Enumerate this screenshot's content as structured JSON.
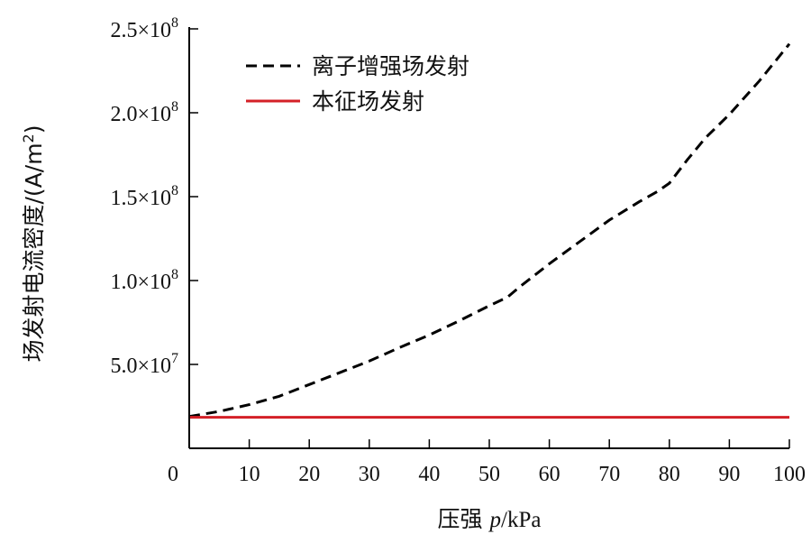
{
  "chart_data": {
    "type": "line",
    "xlabel_prefix": "压强 ",
    "xlabel_var": "p",
    "xlabel_unit": "/kPa",
    "ylabel_main": "场发射电流密度/(A/m",
    "ylabel_sup": "2",
    "ylabel_tail": ")",
    "xlim": [
      0,
      100
    ],
    "ylim": [
      0,
      250000000
    ],
    "x_ticks": [
      0,
      10,
      20,
      30,
      40,
      50,
      60,
      70,
      80,
      90,
      100
    ],
    "x_tick_labels": [
      "0",
      "10",
      "20",
      "30",
      "40",
      "50",
      "60",
      "70",
      "80",
      "90",
      "100"
    ],
    "y_ticks": [
      {
        "value": 50000000,
        "mantissa": "5.0×10",
        "exp": "7"
      },
      {
        "value": 100000000,
        "mantissa": "1.0×10",
        "exp": "8"
      },
      {
        "value": 150000000,
        "mantissa": "1.5×10",
        "exp": "8"
      },
      {
        "value": 200000000,
        "mantissa": "2.0×10",
        "exp": "8"
      },
      {
        "value": 250000000,
        "mantissa": "2.5×10",
        "exp": "8"
      }
    ],
    "legend_position": "top-left",
    "series": [
      {
        "name": "离子增强场发射",
        "style": "dashed",
        "color": "#000000",
        "x": [
          0,
          5,
          10,
          15,
          20,
          25,
          30,
          35,
          40,
          45,
          50,
          53,
          55,
          60,
          65,
          70,
          75,
          78,
          80,
          83,
          86,
          90,
          95,
          100
        ],
        "y": [
          19000000,
          22000000,
          26000000,
          31000000,
          38000000,
          45000000,
          52000000,
          60000000,
          67500000,
          76000000,
          85000000,
          90000000,
          96000000,
          110000000,
          123000000,
          136000000,
          147000000,
          153000000,
          158000000,
          172000000,
          185000000,
          199000000,
          219000000,
          241000000
        ]
      },
      {
        "name": "本征场发射",
        "style": "solid",
        "color": "#d42027",
        "x": [
          0,
          100
        ],
        "y": [
          18500000,
          18500000
        ]
      }
    ]
  }
}
